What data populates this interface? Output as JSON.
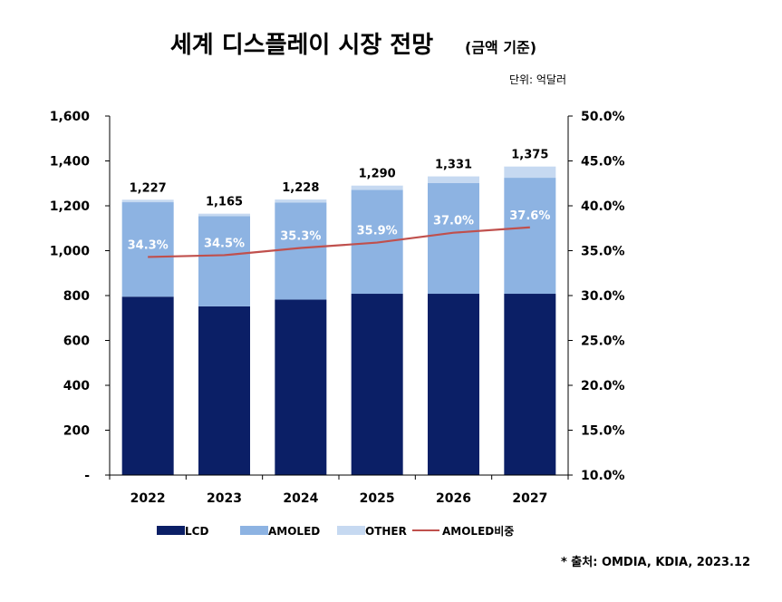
{
  "chart_data": {
    "type": "bar",
    "stacked": true,
    "title": "세계 디스플레이 시장 전망",
    "subtitle": "(금액 기준)",
    "unit_label": "단위: 억달러",
    "categories": [
      "2022",
      "2023",
      "2024",
      "2025",
      "2026",
      "2027"
    ],
    "series": [
      {
        "name": "LCD",
        "color": "#0b1f66",
        "values": [
          795,
          752,
          782,
          808,
          808,
          808
        ]
      },
      {
        "name": "AMOLED",
        "color": "#8db3e2",
        "values": [
          421,
          402,
          433,
          463,
          493,
          517
        ]
      },
      {
        "name": "OTHER",
        "color": "#c6d9f1",
        "values": [
          11,
          11,
          13,
          19,
          30,
          50
        ]
      }
    ],
    "totals": [
      "1,227",
      "1,165",
      "1,228",
      "1,290",
      "1,331",
      "1,375"
    ],
    "line_series": {
      "name": "AMOLED비중",
      "color": "#c0504d",
      "values": [
        34.3,
        34.5,
        35.3,
        35.9,
        37.0,
        37.6
      ],
      "labels": [
        "34.3%",
        "34.5%",
        "35.3%",
        "35.9%",
        "37.0%",
        "37.6%"
      ]
    },
    "y_left": {
      "ylim": [
        0,
        1600
      ],
      "ticks": [
        0,
        200,
        400,
        600,
        800,
        1000,
        1200,
        1400,
        1600
      ],
      "tick_labels": [
        "-",
        "200",
        "400",
        "600",
        "800",
        "1,000",
        "1,200",
        "1,400",
        "1,600"
      ]
    },
    "y_right": {
      "ylim": [
        10,
        50
      ],
      "ticks": [
        10,
        15,
        20,
        25,
        30,
        35,
        40,
        45,
        50
      ],
      "tick_labels": [
        "10.0%",
        "15.0%",
        "20.0%",
        "25.0%",
        "30.0%",
        "35.0%",
        "40.0%",
        "45.0%",
        "50.0%"
      ]
    },
    "legend_position": "bottom",
    "grid": false,
    "source": "* 출처: OMDIA, KDIA, 2023.12"
  }
}
